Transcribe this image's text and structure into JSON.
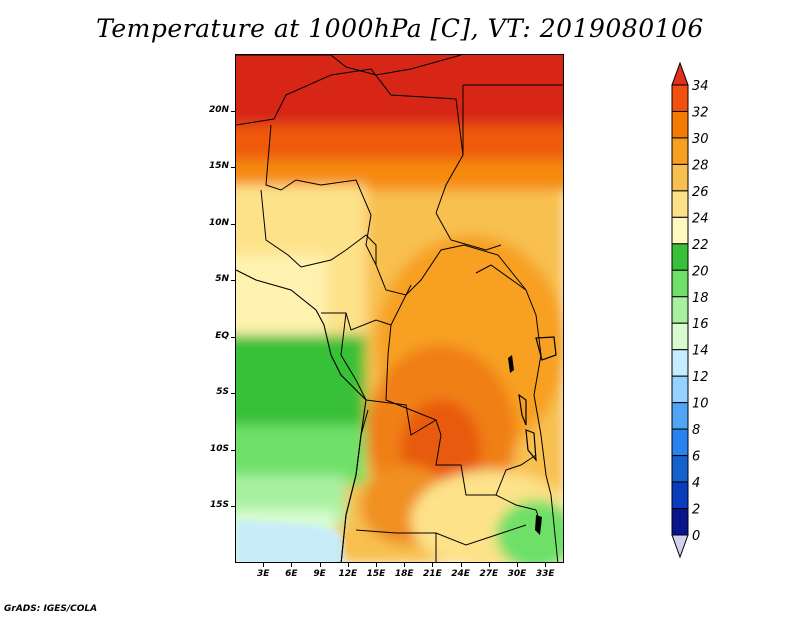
{
  "title": "Temperature at 1000hPa [C], VT: 2019080106",
  "credit": "GrADS: IGES/COLA",
  "map": {
    "lon_range": [
      0,
      35
    ],
    "lat_range": [
      -20,
      25
    ],
    "y_ticks": [
      {
        "lat": 20,
        "label": "20N"
      },
      {
        "lat": 15,
        "label": "15N"
      },
      {
        "lat": 10,
        "label": "10N"
      },
      {
        "lat": 5,
        "label": "5N"
      },
      {
        "lat": 0,
        "label": "EQ"
      },
      {
        "lat": -5,
        "label": "5S"
      },
      {
        "lat": -10,
        "label": "10S"
      },
      {
        "lat": -15,
        "label": "15S"
      }
    ],
    "x_ticks": [
      {
        "lon": 3,
        "label": "3E"
      },
      {
        "lon": 6,
        "label": "6E"
      },
      {
        "lon": 9,
        "label": "9E"
      },
      {
        "lon": 12,
        "label": "12E"
      },
      {
        "lon": 15,
        "label": "15E"
      },
      {
        "lon": 18,
        "label": "18E"
      },
      {
        "lon": 21,
        "label": "21E"
      },
      {
        "lon": 24,
        "label": "24E"
      },
      {
        "lon": 27,
        "label": "27E"
      },
      {
        "lon": 30,
        "label": "30E"
      },
      {
        "lon": 33,
        "label": "33E"
      }
    ]
  },
  "colorbar": {
    "labels": [
      "34",
      "32",
      "30",
      "28",
      "26",
      "24",
      "22",
      "20",
      "18",
      "16",
      "14",
      "12",
      "10",
      "8",
      "6",
      "4",
      "2",
      "0"
    ],
    "colors": [
      "#e0301e",
      "#f05010",
      "#f57a00",
      "#f7a020",
      "#f8c050",
      "#fde28a",
      "#fff8c0",
      "#38c038",
      "#6ee068",
      "#a8f0a0",
      "#d8fcd0",
      "#c6ecff",
      "#96d2ff",
      "#50a5f5",
      "#2882f0",
      "#1460cd",
      "#0a3cbe",
      "#0a148c",
      "#d2d2f0"
    ]
  },
  "legend_values": {
    "min": 0,
    "max": 34,
    "step": 2
  }
}
